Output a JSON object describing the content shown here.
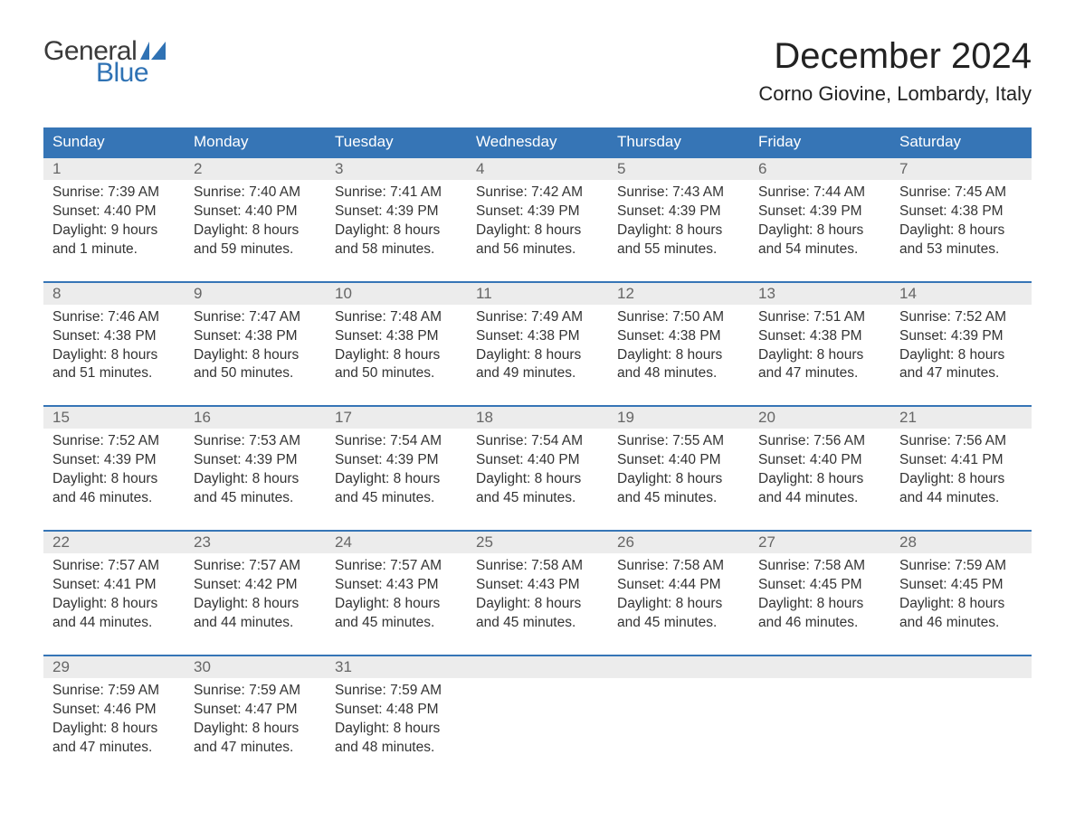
{
  "brand": {
    "text1": "General",
    "text2": "Blue"
  },
  "colors": {
    "header_bg": "#3675b6",
    "header_text": "#ffffff",
    "date_row_bg": "#ececec",
    "date_text": "#666666",
    "body_text": "#333333",
    "week_border": "#3675b6",
    "brand_gray": "#3a3a3a",
    "brand_blue": "#2f72b4",
    "page_bg": "#ffffff"
  },
  "typography": {
    "month_title_fontsize": 40,
    "location_fontsize": 22,
    "header_fontsize": 17,
    "date_fontsize": 17,
    "body_fontsize": 15.5,
    "font_family": "Arial"
  },
  "title": "December 2024",
  "location": "Corno Giovine, Lombardy, Italy",
  "day_names": [
    "Sunday",
    "Monday",
    "Tuesday",
    "Wednesday",
    "Thursday",
    "Friday",
    "Saturday"
  ],
  "weeks": [
    {
      "days": [
        {
          "date": "1",
          "sunrise": "Sunrise: 7:39 AM",
          "sunset": "Sunset: 4:40 PM",
          "daylight1": "Daylight: 9 hours",
          "daylight2": "and 1 minute."
        },
        {
          "date": "2",
          "sunrise": "Sunrise: 7:40 AM",
          "sunset": "Sunset: 4:40 PM",
          "daylight1": "Daylight: 8 hours",
          "daylight2": "and 59 minutes."
        },
        {
          "date": "3",
          "sunrise": "Sunrise: 7:41 AM",
          "sunset": "Sunset: 4:39 PM",
          "daylight1": "Daylight: 8 hours",
          "daylight2": "and 58 minutes."
        },
        {
          "date": "4",
          "sunrise": "Sunrise: 7:42 AM",
          "sunset": "Sunset: 4:39 PM",
          "daylight1": "Daylight: 8 hours",
          "daylight2": "and 56 minutes."
        },
        {
          "date": "5",
          "sunrise": "Sunrise: 7:43 AM",
          "sunset": "Sunset: 4:39 PM",
          "daylight1": "Daylight: 8 hours",
          "daylight2": "and 55 minutes."
        },
        {
          "date": "6",
          "sunrise": "Sunrise: 7:44 AM",
          "sunset": "Sunset: 4:39 PM",
          "daylight1": "Daylight: 8 hours",
          "daylight2": "and 54 minutes."
        },
        {
          "date": "7",
          "sunrise": "Sunrise: 7:45 AM",
          "sunset": "Sunset: 4:38 PM",
          "daylight1": "Daylight: 8 hours",
          "daylight2": "and 53 minutes."
        }
      ]
    },
    {
      "days": [
        {
          "date": "8",
          "sunrise": "Sunrise: 7:46 AM",
          "sunset": "Sunset: 4:38 PM",
          "daylight1": "Daylight: 8 hours",
          "daylight2": "and 51 minutes."
        },
        {
          "date": "9",
          "sunrise": "Sunrise: 7:47 AM",
          "sunset": "Sunset: 4:38 PM",
          "daylight1": "Daylight: 8 hours",
          "daylight2": "and 50 minutes."
        },
        {
          "date": "10",
          "sunrise": "Sunrise: 7:48 AM",
          "sunset": "Sunset: 4:38 PM",
          "daylight1": "Daylight: 8 hours",
          "daylight2": "and 50 minutes."
        },
        {
          "date": "11",
          "sunrise": "Sunrise: 7:49 AM",
          "sunset": "Sunset: 4:38 PM",
          "daylight1": "Daylight: 8 hours",
          "daylight2": "and 49 minutes."
        },
        {
          "date": "12",
          "sunrise": "Sunrise: 7:50 AM",
          "sunset": "Sunset: 4:38 PM",
          "daylight1": "Daylight: 8 hours",
          "daylight2": "and 48 minutes."
        },
        {
          "date": "13",
          "sunrise": "Sunrise: 7:51 AM",
          "sunset": "Sunset: 4:38 PM",
          "daylight1": "Daylight: 8 hours",
          "daylight2": "and 47 minutes."
        },
        {
          "date": "14",
          "sunrise": "Sunrise: 7:52 AM",
          "sunset": "Sunset: 4:39 PM",
          "daylight1": "Daylight: 8 hours",
          "daylight2": "and 47 minutes."
        }
      ]
    },
    {
      "days": [
        {
          "date": "15",
          "sunrise": "Sunrise: 7:52 AM",
          "sunset": "Sunset: 4:39 PM",
          "daylight1": "Daylight: 8 hours",
          "daylight2": "and 46 minutes."
        },
        {
          "date": "16",
          "sunrise": "Sunrise: 7:53 AM",
          "sunset": "Sunset: 4:39 PM",
          "daylight1": "Daylight: 8 hours",
          "daylight2": "and 45 minutes."
        },
        {
          "date": "17",
          "sunrise": "Sunrise: 7:54 AM",
          "sunset": "Sunset: 4:39 PM",
          "daylight1": "Daylight: 8 hours",
          "daylight2": "and 45 minutes."
        },
        {
          "date": "18",
          "sunrise": "Sunrise: 7:54 AM",
          "sunset": "Sunset: 4:40 PM",
          "daylight1": "Daylight: 8 hours",
          "daylight2": "and 45 minutes."
        },
        {
          "date": "19",
          "sunrise": "Sunrise: 7:55 AM",
          "sunset": "Sunset: 4:40 PM",
          "daylight1": "Daylight: 8 hours",
          "daylight2": "and 45 minutes."
        },
        {
          "date": "20",
          "sunrise": "Sunrise: 7:56 AM",
          "sunset": "Sunset: 4:40 PM",
          "daylight1": "Daylight: 8 hours",
          "daylight2": "and 44 minutes."
        },
        {
          "date": "21",
          "sunrise": "Sunrise: 7:56 AM",
          "sunset": "Sunset: 4:41 PM",
          "daylight1": "Daylight: 8 hours",
          "daylight2": "and 44 minutes."
        }
      ]
    },
    {
      "days": [
        {
          "date": "22",
          "sunrise": "Sunrise: 7:57 AM",
          "sunset": "Sunset: 4:41 PM",
          "daylight1": "Daylight: 8 hours",
          "daylight2": "and 44 minutes."
        },
        {
          "date": "23",
          "sunrise": "Sunrise: 7:57 AM",
          "sunset": "Sunset: 4:42 PM",
          "daylight1": "Daylight: 8 hours",
          "daylight2": "and 44 minutes."
        },
        {
          "date": "24",
          "sunrise": "Sunrise: 7:57 AM",
          "sunset": "Sunset: 4:43 PM",
          "daylight1": "Daylight: 8 hours",
          "daylight2": "and 45 minutes."
        },
        {
          "date": "25",
          "sunrise": "Sunrise: 7:58 AM",
          "sunset": "Sunset: 4:43 PM",
          "daylight1": "Daylight: 8 hours",
          "daylight2": "and 45 minutes."
        },
        {
          "date": "26",
          "sunrise": "Sunrise: 7:58 AM",
          "sunset": "Sunset: 4:44 PM",
          "daylight1": "Daylight: 8 hours",
          "daylight2": "and 45 minutes."
        },
        {
          "date": "27",
          "sunrise": "Sunrise: 7:58 AM",
          "sunset": "Sunset: 4:45 PM",
          "daylight1": "Daylight: 8 hours",
          "daylight2": "and 46 minutes."
        },
        {
          "date": "28",
          "sunrise": "Sunrise: 7:59 AM",
          "sunset": "Sunset: 4:45 PM",
          "daylight1": "Daylight: 8 hours",
          "daylight2": "and 46 minutes."
        }
      ]
    },
    {
      "days": [
        {
          "date": "29",
          "sunrise": "Sunrise: 7:59 AM",
          "sunset": "Sunset: 4:46 PM",
          "daylight1": "Daylight: 8 hours",
          "daylight2": "and 47 minutes."
        },
        {
          "date": "30",
          "sunrise": "Sunrise: 7:59 AM",
          "sunset": "Sunset: 4:47 PM",
          "daylight1": "Daylight: 8 hours",
          "daylight2": "and 47 minutes."
        },
        {
          "date": "31",
          "sunrise": "Sunrise: 7:59 AM",
          "sunset": "Sunset: 4:48 PM",
          "daylight1": "Daylight: 8 hours",
          "daylight2": "and 48 minutes."
        },
        null,
        null,
        null,
        null
      ]
    }
  ]
}
